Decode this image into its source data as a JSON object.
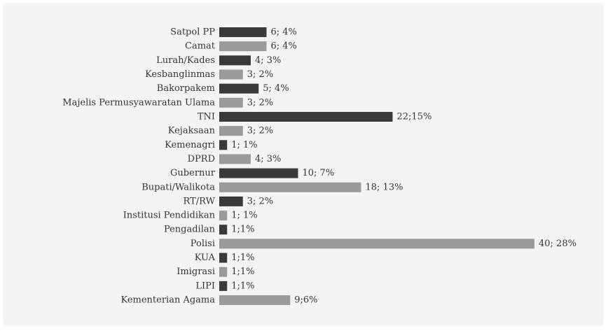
{
  "chart_data": {
    "type": "bar",
    "orientation": "horizontal",
    "categories": [
      "Satpol PP",
      "Camat",
      "Lurah/Kades",
      "Kesbanglinmas",
      "Bakorpakem",
      "Majelis Permusyawaratan Ulama",
      "TNI",
      "Kejaksaan",
      "Kemenagri",
      "DPRD",
      "Gubernur",
      "Bupati/Walikota",
      "RT/RW",
      "Institusi Pendidikan",
      "Pengadilan",
      "Polisi",
      "KUA",
      "Imigrasi",
      "LIPI",
      "Kementerian Agama"
    ],
    "values": [
      6,
      6,
      4,
      3,
      5,
      3,
      22,
      3,
      1,
      4,
      10,
      18,
      3,
      1,
      1,
      40,
      1,
      1,
      1,
      9
    ],
    "value_labels": [
      "6; 4%",
      "6; 4%",
      "4; 3%",
      "3; 2%",
      "5; 4%",
      "3; 2%",
      "22;15%",
      "3; 2%",
      "1; 1%",
      "4; 3%",
      "10; 7%",
      "18; 13%",
      "3; 2%",
      "1; 1%",
      "1;1%",
      "40; 28%",
      "1;1%",
      "1;1%",
      "1;1%",
      "9;6%"
    ],
    "colors": [
      "#3a3a3a",
      "#9a9a9a",
      "#3a3a3a",
      "#9a9a9a",
      "#3a3a3a",
      "#9a9a9a",
      "#3a3a3a",
      "#9a9a9a",
      "#3a3a3a",
      "#9a9a9a",
      "#3a3a3a",
      "#9a9a9a",
      "#3a3a3a",
      "#9a9a9a",
      "#3a3a3a",
      "#9a9a9a",
      "#3a3a3a",
      "#9a9a9a",
      "#3a3a3a",
      "#9a9a9a"
    ]
  }
}
